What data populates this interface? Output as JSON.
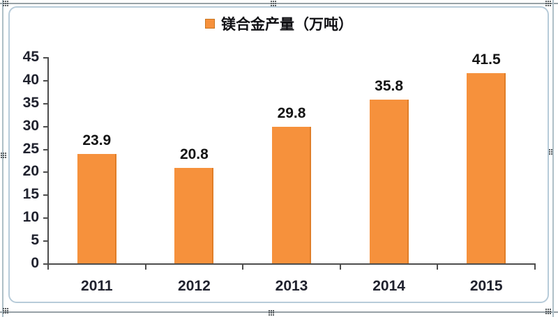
{
  "chart_data": {
    "type": "bar",
    "title": "镁合金产量（万吨）",
    "legend": {
      "label": "镁合金产量（万吨）",
      "position": "top",
      "marker_color": "#F6913C"
    },
    "categories": [
      "2011",
      "2012",
      "2013",
      "2014",
      "2015"
    ],
    "values": [
      23.9,
      20.8,
      29.8,
      35.8,
      41.5
    ],
    "data_labels": [
      "23.9",
      "20.8",
      "29.8",
      "35.8",
      "41.5"
    ],
    "xlabel": "",
    "ylabel": "",
    "ylim": [
      0,
      45
    ],
    "ytick_step": 5,
    "yticks": [
      0,
      5,
      10,
      15,
      20,
      25,
      30,
      35,
      40,
      45
    ],
    "grid": false,
    "legend_position": "top",
    "bar_color": "#F6913C",
    "bar_edge_color": "#E07E28",
    "axis_color": "#4d4d4d",
    "label_color": "#20222e",
    "data_label_color": "#141414",
    "frame_border_color": "#b7cbd9"
  }
}
